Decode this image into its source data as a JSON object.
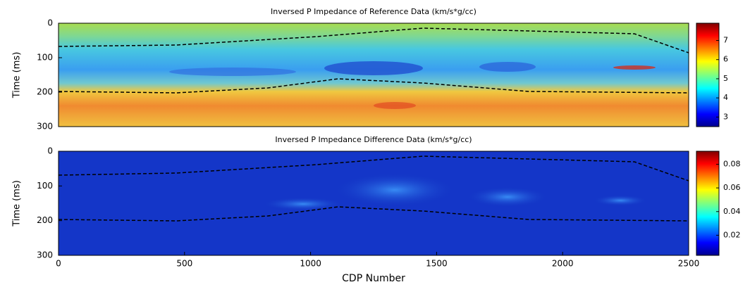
{
  "chart_data": [
    {
      "type": "heatmap",
      "title": "Inversed P Impedance of Reference Data (km/s*g/cc)",
      "ylabel": "Time (ms)",
      "xlim": [
        0,
        2500
      ],
      "ylim": [
        0,
        300
      ],
      "y_inverted": true,
      "yticks": [
        0,
        100,
        200,
        300
      ],
      "colormap": "jet",
      "clim": [
        2.5,
        7.9
      ],
      "cticks": [
        3,
        4,
        5,
        6,
        7
      ]
    },
    {
      "type": "heatmap",
      "title": "Inversed P Impedance Difference Data (km/s*g/cc)",
      "ylabel": "Time (ms)",
      "xlabel": "CDP Number",
      "xlim": [
        0,
        2500
      ],
      "ylim": [
        0,
        300
      ],
      "y_inverted": true,
      "yticks": [
        0,
        100,
        200,
        300
      ],
      "xticks": [
        0,
        500,
        1000,
        1500,
        2000,
        2500
      ],
      "colormap": "jet",
      "clim": [
        0.003,
        0.091
      ],
      "cticks": [
        0.02,
        0.04,
        0.06,
        0.08
      ]
    }
  ]
}
